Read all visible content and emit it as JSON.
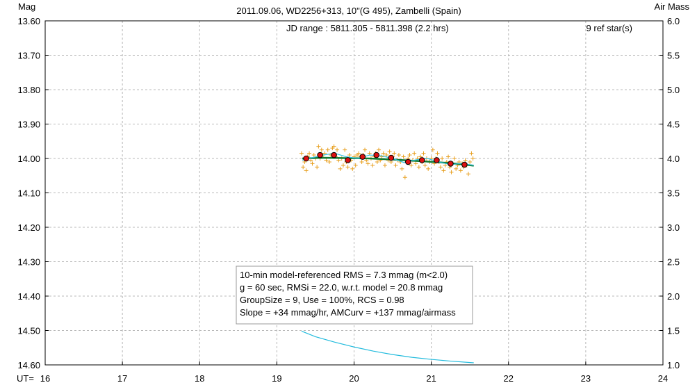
{
  "chart_data": {
    "type": "scatter",
    "title": "2011.09.06, WD2256+313, 10\"(G 495), Zambelli (Spain)",
    "ylabel": "Mag",
    "y2label": "Air Mass",
    "xlabel": "UT=",
    "xlim": [
      16,
      24
    ],
    "ylim": [
      14.6,
      13.6
    ],
    "y2lim": [
      1.0,
      6.0
    ],
    "y_inverted": true,
    "grid": true,
    "xticks": [
      "16",
      "17",
      "18",
      "19",
      "20",
      "21",
      "22",
      "23",
      "24"
    ],
    "yticks": [
      "13.60",
      "13.70",
      "13.80",
      "13.90",
      "14.00",
      "14.10",
      "14.20",
      "14.30",
      "14.40",
      "14.50",
      "14.60"
    ],
    "y2ticks": [
      "6.0",
      "5.5",
      "5.0",
      "4.5",
      "4.0",
      "3.5",
      "3.0",
      "2.5",
      "2.0",
      "1.5",
      "1.0"
    ],
    "jd_range": "JD range : 5811.305 - 5811.398 (2.2 hrs)",
    "ref_stars": "9 ref star(s)",
    "stats": [
      "10-min model-referenced RMS = 7.3 mmag (m<2.0)",
      "g = 60 sec, RMSi = 22.0, w.r.t. model = 20.8 mmag",
      "GroupSize = 9, Use = 100%, RCS = 0.98",
      "Slope = +34 mmag/hr, AMCurv = +137 mmag/airmass"
    ],
    "series": [
      {
        "kind": "individual",
        "marker": "plus",
        "color": "#e8a020",
        "x": [
          19.32,
          19.34,
          19.36,
          19.38,
          19.4,
          19.42,
          19.44,
          19.46,
          19.48,
          19.5,
          19.52,
          19.54,
          19.56,
          19.58,
          19.6,
          19.62,
          19.64,
          19.66,
          19.68,
          19.7,
          19.72,
          19.74,
          19.76,
          19.78,
          19.8,
          19.82,
          19.84,
          19.86,
          19.88,
          19.9,
          19.92,
          19.94,
          19.96,
          19.98,
          20.0,
          20.02,
          20.04,
          20.06,
          20.08,
          20.1,
          20.12,
          20.14,
          20.16,
          20.18,
          20.2,
          20.22,
          20.24,
          20.26,
          20.28,
          20.3,
          20.32,
          20.34,
          20.36,
          20.38,
          20.4,
          20.42,
          20.44,
          20.46,
          20.48,
          20.5,
          20.52,
          20.54,
          20.56,
          20.58,
          20.6,
          20.62,
          20.64,
          20.66,
          20.68,
          20.7,
          20.72,
          20.74,
          20.76,
          20.78,
          20.8,
          20.82,
          20.84,
          20.86,
          20.88,
          20.9,
          20.92,
          20.94,
          20.96,
          20.98,
          21.0,
          21.02,
          21.04,
          21.06,
          21.08,
          21.1,
          21.12,
          21.14,
          21.16,
          21.18,
          21.2,
          21.22,
          21.24,
          21.26,
          21.28,
          21.3,
          21.32,
          21.34,
          21.36,
          21.38,
          21.4,
          21.42,
          21.44,
          21.46,
          21.48,
          21.5,
          21.52,
          21.54
        ],
        "y": [
          13.985,
          14.025,
          14.01,
          14.035,
          13.995,
          13.985,
          14.005,
          14.015,
          13.99,
          14.0,
          14.025,
          13.965,
          14.0,
          13.975,
          13.99,
          13.985,
          14.005,
          13.975,
          14.01,
          13.99,
          13.97,
          13.965,
          13.995,
          13.975,
          14.005,
          14.03,
          14.0,
          14.02,
          13.975,
          14.01,
          14.025,
          13.99,
          14.005,
          14.03,
          13.995,
          14.02,
          13.99,
          13.985,
          13.995,
          14.01,
          13.99,
          13.975,
          14.005,
          14.015,
          13.985,
          14.0,
          14.02,
          13.995,
          13.985,
          14.01,
          13.975,
          14.005,
          13.995,
          13.985,
          14.02,
          13.99,
          14.005,
          13.98,
          14.01,
          13.995,
          13.985,
          14.02,
          14.005,
          13.99,
          14.01,
          14.03,
          13.995,
          14.055,
          14.01,
          14.0,
          13.99,
          14.02,
          14.005,
          13.985,
          14.015,
          14.0,
          14.025,
          13.995,
          14.01,
          13.985,
          14.02,
          14.0,
          14.03,
          14.01,
          14.0,
          13.975,
          14.015,
          14.0,
          13.985,
          14.01,
          14.025,
          14.0,
          14.035,
          14.02,
          14.01,
          13.995,
          14.025,
          14.04,
          14.015,
          14.0,
          14.03,
          14.02,
          14.01,
          14.035,
          14.015,
          14.025,
          14.005,
          14.02,
          14.045,
          14.01,
          13.985,
          14.0
        ]
      },
      {
        "kind": "group-average",
        "marker": "circle",
        "color": "#dd1111",
        "x": [
          19.38,
          19.56,
          19.74,
          19.92,
          20.11,
          20.29,
          20.48,
          20.7,
          20.88,
          21.07,
          21.25,
          21.43
        ],
        "y": [
          14.0,
          13.99,
          13.99,
          14.005,
          13.995,
          13.99,
          13.998,
          14.01,
          14.005,
          14.005,
          14.015,
          14.018
        ]
      },
      {
        "kind": "model",
        "style": "line",
        "color": "#117a30",
        "x": [
          19.33,
          19.6,
          19.9,
          20.2,
          20.5,
          20.8,
          21.1,
          21.4,
          21.55
        ],
        "y": [
          14.0,
          13.998,
          13.999,
          14.0,
          14.003,
          14.007,
          14.011,
          14.017,
          14.021
        ]
      },
      {
        "kind": "running-average",
        "style": "line",
        "color": "#30c0e0",
        "x": [
          19.33,
          19.45,
          19.6,
          19.75,
          19.9,
          20.05,
          20.2,
          20.35,
          20.5,
          20.65,
          20.8,
          20.95,
          21.1,
          21.25,
          21.4,
          21.55
        ],
        "y": [
          14.005,
          13.998,
          13.99,
          13.985,
          13.995,
          14.0,
          13.99,
          13.992,
          14.0,
          14.012,
          14.004,
          14.0,
          14.01,
          14.018,
          14.014,
          14.02
        ]
      },
      {
        "kind": "airmass",
        "style": "line",
        "axis": "y2",
        "color": "#22bbdd",
        "x": [
          19.32,
          19.5,
          19.75,
          20.0,
          20.25,
          20.5,
          20.75,
          21.0,
          21.25,
          21.55
        ],
        "y": [
          1.49,
          1.41,
          1.33,
          1.26,
          1.2,
          1.15,
          1.11,
          1.08,
          1.055,
          1.03
        ]
      }
    ]
  }
}
